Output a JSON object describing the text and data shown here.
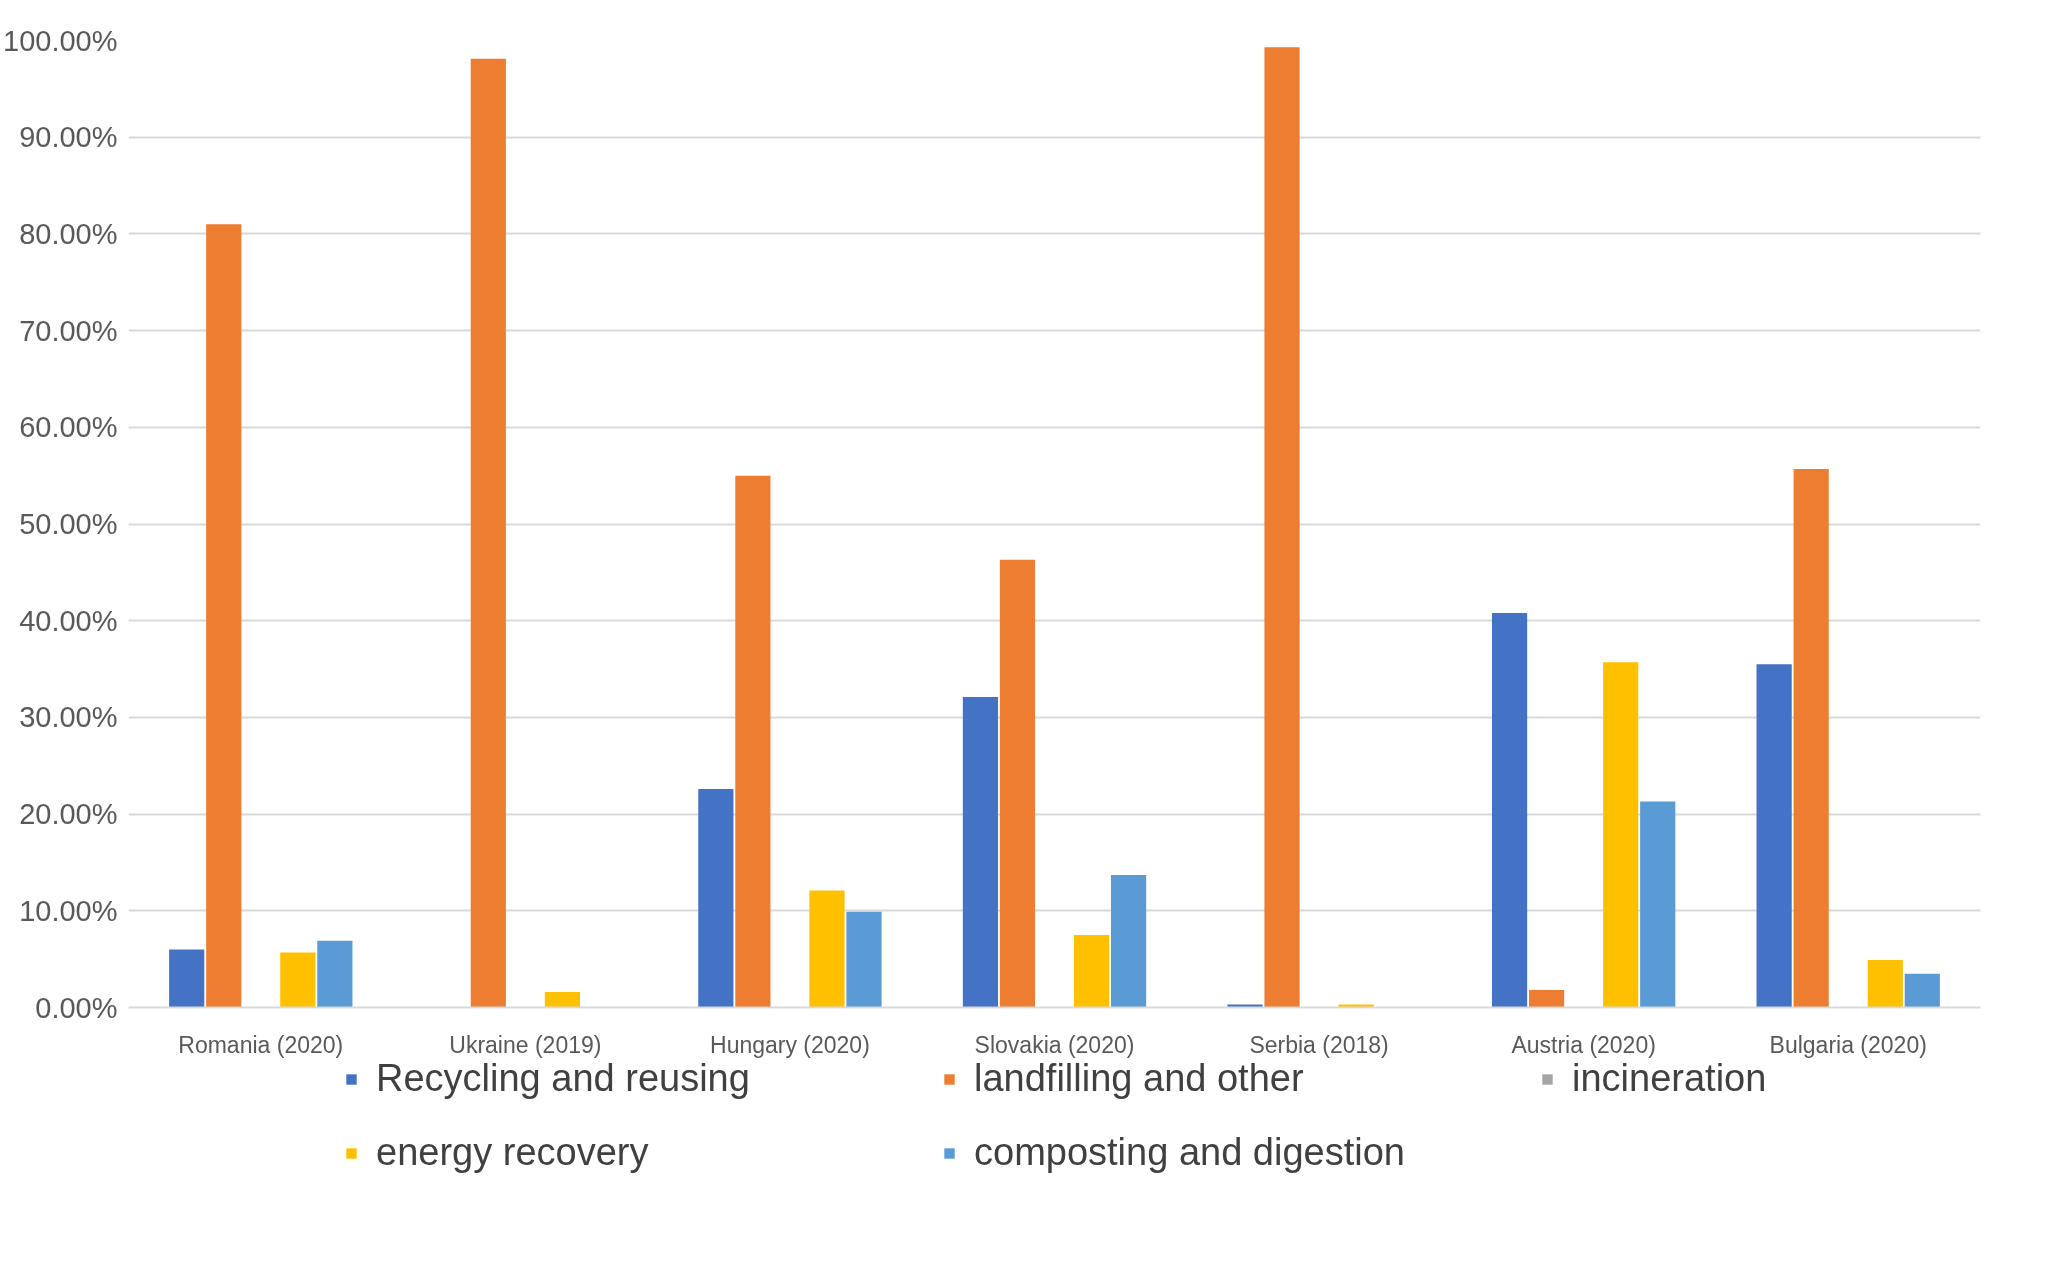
{
  "chart_data": {
    "type": "bar",
    "categories": [
      "Romania (2020)",
      "Ukraine (2019)",
      "Hungary (2020)",
      "Slovakia (2020)",
      "Serbia (2018)",
      "Austria (2020)",
      "Bulgaria (2020)"
    ],
    "series": [
      {
        "name": "Recycling and reusing",
        "color": "#4472c4",
        "values": [
          6.0,
          0,
          22.6,
          32.1,
          0.3,
          40.8,
          35.5
        ]
      },
      {
        "name": "landfilling and other",
        "color": "#ed7d31",
        "values": [
          81.0,
          98.1,
          55.0,
          46.3,
          99.3,
          1.8,
          55.7
        ]
      },
      {
        "name": "incineration",
        "color": "#a5a5a5",
        "values": [
          0,
          0,
          0,
          0,
          0,
          0,
          0
        ]
      },
      {
        "name": "energy recovery",
        "color": "#ffc000",
        "values": [
          5.7,
          1.6,
          12.1,
          7.5,
          0.3,
          35.7,
          4.9
        ]
      },
      {
        "name": "composting and digestion",
        "color": "#5b9bd5",
        "values": [
          6.9,
          0,
          9.9,
          13.7,
          0,
          21.3,
          3.5
        ]
      }
    ],
    "ylim": [
      0,
      100
    ],
    "yticks": [
      {
        "value": 0,
        "label": "0.00%"
      },
      {
        "value": 10,
        "label": "10.00%"
      },
      {
        "value": 20,
        "label": "20.00%"
      },
      {
        "value": 30,
        "label": "30.00%"
      },
      {
        "value": 40,
        "label": "40.00%"
      },
      {
        "value": 50,
        "label": "50.00%"
      },
      {
        "value": 60,
        "label": "60.00%"
      },
      {
        "value": 70,
        "label": "70.00%"
      },
      {
        "value": 80,
        "label": "80.00%"
      },
      {
        "value": 90,
        "label": "90.00%"
      },
      {
        "value": 100,
        "label": "100.00%"
      }
    ],
    "grid": "y",
    "legend": "bottom"
  }
}
